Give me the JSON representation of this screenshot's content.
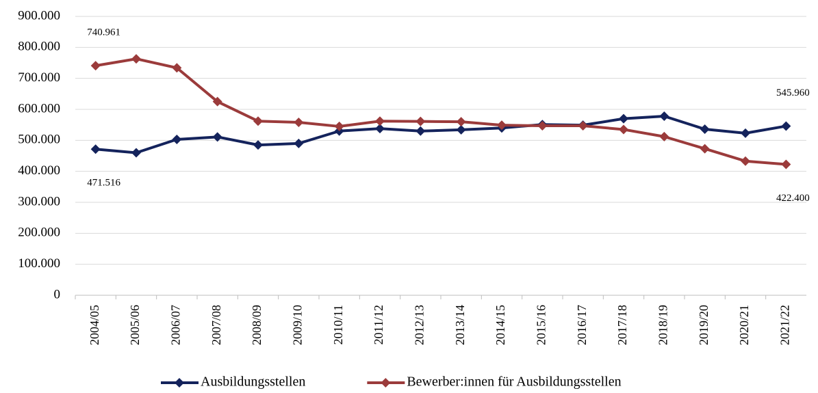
{
  "chart_data": {
    "type": "line",
    "categories": [
      "2004/05",
      "2005/06",
      "2006/07",
      "2007/08",
      "2008/09",
      "2009/10",
      "2010/11",
      "2011/12",
      "2012/13",
      "2013/14",
      "2014/15",
      "2015/16",
      "2016/17",
      "2017/18",
      "2018/19",
      "2019/20",
      "2020/21",
      "2021/22"
    ],
    "series": [
      {
        "name": "Ausbildungsstellen",
        "color": "#14235c",
        "values": [
          471516,
          460000,
          503000,
          511000,
          485000,
          490000,
          530000,
          538000,
          530000,
          534000,
          540000,
          551000,
          549000,
          570000,
          578000,
          536000,
          523000,
          545960
        ],
        "value_labels": [
          "471.516",
          null,
          null,
          null,
          null,
          null,
          null,
          null,
          null,
          null,
          null,
          null,
          null,
          null,
          null,
          null,
          null,
          "545.960"
        ]
      },
      {
        "name": "Bewerber:innen für Ausbildungsstellen",
        "color": "#9b3b3b",
        "values": [
          740961,
          763000,
          734000,
          625000,
          562000,
          558000,
          545000,
          562000,
          561000,
          560000,
          549000,
          547000,
          547000,
          535000,
          512000,
          473000,
          433000,
          422400
        ],
        "value_labels": [
          "740.961",
          null,
          null,
          null,
          null,
          null,
          null,
          null,
          null,
          null,
          null,
          null,
          null,
          null,
          null,
          null,
          null,
          "422.400"
        ]
      }
    ],
    "ylim": [
      0,
      900000
    ],
    "yticks": [
      0,
      {
        "value": 100000,
        "label": "100.000"
      },
      {
        "value": 200000,
        "label": "200.000"
      },
      {
        "value": 300000,
        "label": "300.000"
      },
      {
        "value": 400000,
        "label": "400.000"
      },
      {
        "value": 500000,
        "label": "500.000"
      },
      {
        "value": 600000,
        "label": "600.000"
      },
      {
        "value": 700000,
        "label": "700.000"
      },
      {
        "value": 800000,
        "label": "800.000"
      },
      {
        "value": 900000,
        "label": "900.000"
      }
    ],
    "grid": true,
    "legend": "bottom"
  }
}
